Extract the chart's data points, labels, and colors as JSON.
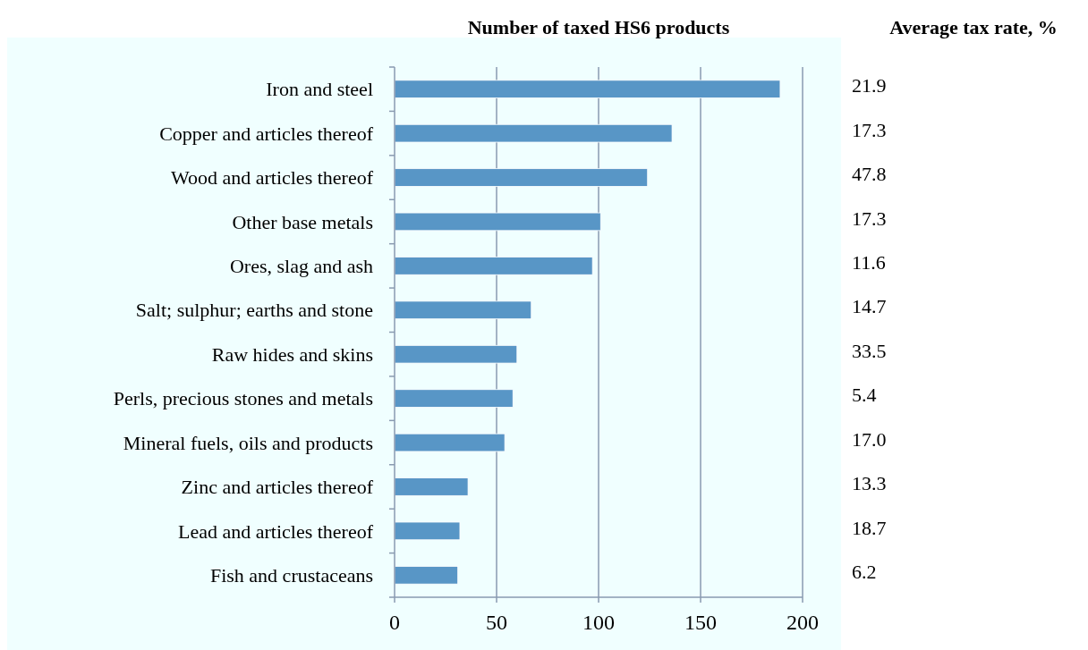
{
  "chart_data": [
    {
      "type": "bar",
      "orientation": "horizontal",
      "title": "Number of taxed HS6 products",
      "categories": [
        "Iron and steel",
        "Copper and articles thereof",
        "Wood and articles thereof",
        "Other base metals",
        "Ores, slag and ash",
        "Salt; sulphur; earths and stone",
        "Raw hides and skins",
        "Perls, precious stones and metals",
        "Mineral fuels, oils and products",
        "Zinc and articles thereof",
        "Lead and articles thereof",
        "Fish and crustaceans"
      ],
      "values": [
        189,
        136,
        124,
        101,
        97,
        67,
        60,
        58,
        54,
        36,
        32,
        31
      ],
      "color": "#5896c6",
      "xlim": [
        0,
        200
      ],
      "xticks": [
        0,
        50,
        100,
        150,
        200
      ],
      "grid": "x"
    },
    {
      "type": "other",
      "title": "Average tax rate, %",
      "annotations": [
        "21.9",
        "17.3",
        "47.8",
        "17.3",
        "11.6",
        "14.7",
        "33.5",
        "5.4",
        "17.0",
        "13.3",
        "18.7",
        "6.2"
      ]
    }
  ]
}
